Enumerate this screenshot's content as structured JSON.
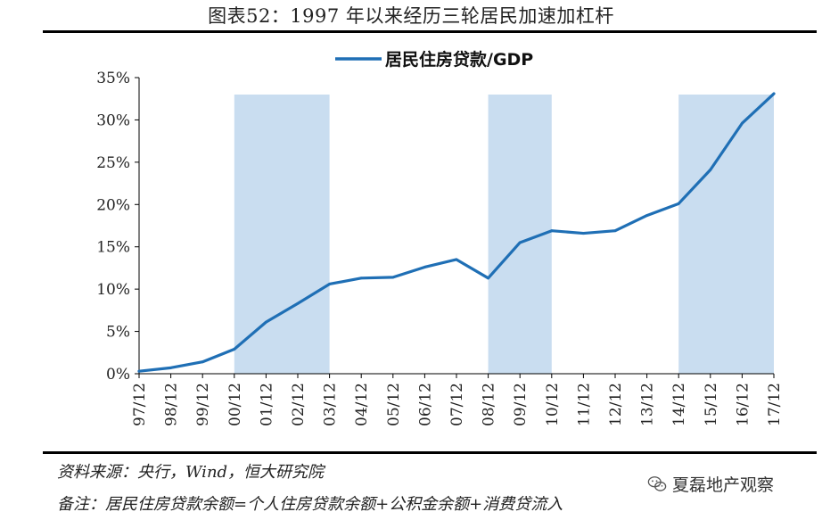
{
  "title": "图表52：1997 年以来经历三轮居民加速加杠杆",
  "source": "资料来源：央行，Wind，恒大研究院",
  "note": "备注：居民住房贷款余额=个人住房贷款余额+公积金余额+消费贷流入",
  "watermark": {
    "text": "夏磊地产观察",
    "icon": "wechat-icon"
  },
  "chart_data": {
    "type": "line",
    "title": "",
    "xlabel": "",
    "ylabel": "",
    "categories": [
      "97/12",
      "98/12",
      "99/12",
      "00/12",
      "01/12",
      "02/12",
      "03/12",
      "04/12",
      "05/12",
      "06/12",
      "07/12",
      "08/12",
      "09/12",
      "10/12",
      "11/12",
      "12/12",
      "13/12",
      "14/12",
      "15/12",
      "16/12",
      "17/12"
    ],
    "series": [
      {
        "name": "居民住房贷款/GDP",
        "color": "#1f6fb5",
        "values": [
          0.3,
          0.7,
          1.4,
          2.9,
          6.1,
          8.3,
          10.6,
          11.3,
          11.4,
          12.6,
          13.5,
          11.3,
          15.5,
          16.9,
          16.6,
          16.9,
          18.7,
          20.1,
          24.1,
          29.6,
          33.1
        ]
      }
    ],
    "shaded_periods": [
      {
        "from": "00/12",
        "to": "03/12",
        "color": "#c9ddf0"
      },
      {
        "from": "08/12",
        "to": "10/12",
        "color": "#c9ddf0"
      },
      {
        "from": "14/12",
        "to": "17/12",
        "color": "#c9ddf0"
      }
    ],
    "y_ticks": [
      "0%",
      "5%",
      "10%",
      "15%",
      "20%",
      "25%",
      "30%",
      "35%"
    ],
    "ylim": [
      0,
      35
    ],
    "legend_position": "top-center",
    "grid": false
  }
}
